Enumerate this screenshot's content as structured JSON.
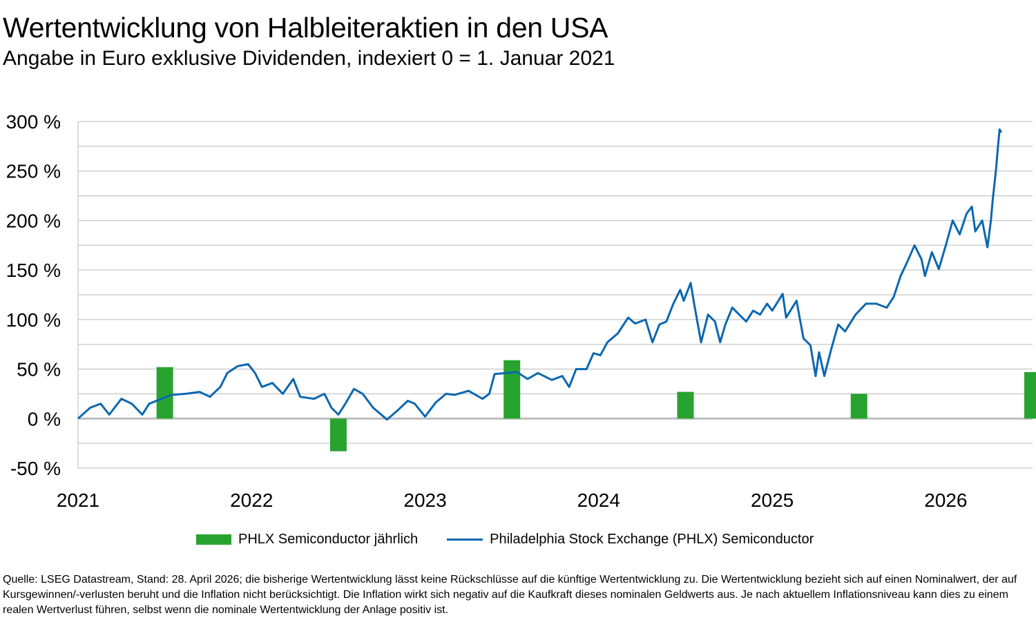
{
  "chart_data": {
    "type": "bar+line",
    "title": "Wertentwicklung von Halbleiteraktien in den USA",
    "subtitle": "Angabe in Euro exklusive Dividenden, indexiert 0 = 1. Januar 2021",
    "xlabel": "",
    "ylabel": "",
    "xlim": [
      2021,
      2026.5
    ],
    "ylim": [
      -50,
      300
    ],
    "y_ticks": [
      300,
      250,
      200,
      150,
      100,
      50,
      0,
      -50
    ],
    "y_tick_labels": [
      "300 %",
      "250 %",
      "200 %",
      "150 %",
      "100 %",
      "50 %",
      "0 %",
      "-50 %"
    ],
    "x_ticks": [
      2021,
      2022,
      2023,
      2024,
      2025,
      2026
    ],
    "x_tick_labels": [
      "2021",
      "2022",
      "2023",
      "2024",
      "2025",
      "2026"
    ],
    "grid": true,
    "legend_position": "bottom",
    "colors": {
      "bars": "#28a32f",
      "line": "#0a67b0",
      "grid": "#c8c8c8"
    },
    "series": [
      {
        "name": "PHLX Semiconductor jährlich",
        "type": "bar",
        "categories": [
          "2021",
          "2022",
          "2023",
          "2024",
          "2025",
          "2026"
        ],
        "values": [
          52,
          -33,
          59,
          27,
          25,
          47
        ]
      },
      {
        "name": "Philadelphia Stock Exchange (PHLX) Semiconductor",
        "type": "line",
        "x": [
          2021.0,
          2021.07,
          2021.13,
          2021.18,
          2021.25,
          2021.31,
          2021.37,
          2021.41,
          2021.48,
          2021.54,
          2021.62,
          2021.7,
          2021.76,
          2021.82,
          2021.86,
          2021.92,
          2021.98,
          2022.02,
          2022.06,
          2022.12,
          2022.18,
          2022.24,
          2022.28,
          2022.36,
          2022.42,
          2022.46,
          2022.5,
          2022.54,
          2022.59,
          2022.64,
          2022.7,
          2022.78,
          2022.84,
          2022.9,
          2022.94,
          2023.0,
          2023.06,
          2023.12,
          2023.17,
          2023.25,
          2023.33,
          2023.37,
          2023.4,
          2023.47,
          2023.53,
          2023.59,
          2023.65,
          2023.73,
          2023.79,
          2023.83,
          2023.87,
          2023.93,
          2023.97,
          2024.01,
          2024.05,
          2024.11,
          2024.17,
          2024.21,
          2024.27,
          2024.31,
          2024.35,
          2024.39,
          2024.43,
          2024.47,
          2024.49,
          2024.53,
          2024.55,
          2024.59,
          2024.63,
          2024.67,
          2024.7,
          2024.73,
          2024.77,
          2024.81,
          2024.85,
          2024.89,
          2024.93,
          2024.97,
          2025.0,
          2025.06,
          2025.08,
          2025.14,
          2025.18,
          2025.22,
          2025.25,
          2025.27,
          2025.3,
          2025.34,
          2025.38,
          2025.42,
          2025.48,
          2025.54,
          2025.6,
          2025.66,
          2025.7,
          2025.74,
          2025.78,
          2025.82,
          2025.86,
          2025.88,
          2025.92,
          2025.96,
          2026.0,
          2026.04,
          2026.08,
          2026.12,
          2026.15,
          2026.17,
          2026.21,
          2026.24,
          2026.26,
          2026.27,
          2026.29,
          2026.3,
          2026.31,
          2026.32
        ],
        "y": [
          0,
          11,
          15,
          4,
          20,
          15,
          4,
          15,
          20,
          24,
          25,
          27,
          22,
          32,
          46,
          53,
          55,
          46,
          32,
          36,
          25,
          40,
          22,
          20,
          25,
          11,
          4,
          15,
          30,
          25,
          11,
          -1,
          8,
          18,
          15,
          2,
          16,
          25,
          24,
          28,
          20,
          25,
          45,
          46,
          47,
          40,
          46,
          39,
          43,
          32,
          50,
          50,
          66,
          64,
          77,
          86,
          102,
          96,
          100,
          77,
          95,
          98,
          116,
          130,
          119,
          137,
          116,
          77,
          105,
          98,
          77,
          95,
          112,
          105,
          98,
          109,
          105,
          116,
          109,
          126,
          102,
          119,
          81,
          74,
          43,
          67,
          43,
          70,
          95,
          88,
          105,
          116,
          116,
          112,
          123,
          144,
          159,
          175,
          161,
          144,
          168,
          151,
          175,
          200,
          186,
          207,
          214,
          189,
          200,
          173,
          200,
          220,
          252,
          273,
          292,
          289
        ]
      }
    ]
  },
  "legend": {
    "bar_label": "PHLX Semiconductor jährlich",
    "line_label": "Philadelphia Stock Exchange (PHLX) Semiconductor"
  },
  "footer": "Quelle: LSEG Datastream, Stand: 28. April 2026; die bisherige Wertentwicklung lässt keine Rückschlüsse auf die künftige Wertentwicklung zu. Die Wertentwicklung bezieht sich auf einen Nominalwert, der auf Kursgewinnen/-verlusten beruht und die Inflation nicht berücksichtigt. Die Inflation wirkt sich negativ auf die Kaufkraft dieses nominalen Geldwerts aus. Je nach aktuellem Inflationsniveau kann dies zu einem realen Wertverlust führen, selbst wenn die nominale Wertentwicklung der Anlage positiv ist."
}
